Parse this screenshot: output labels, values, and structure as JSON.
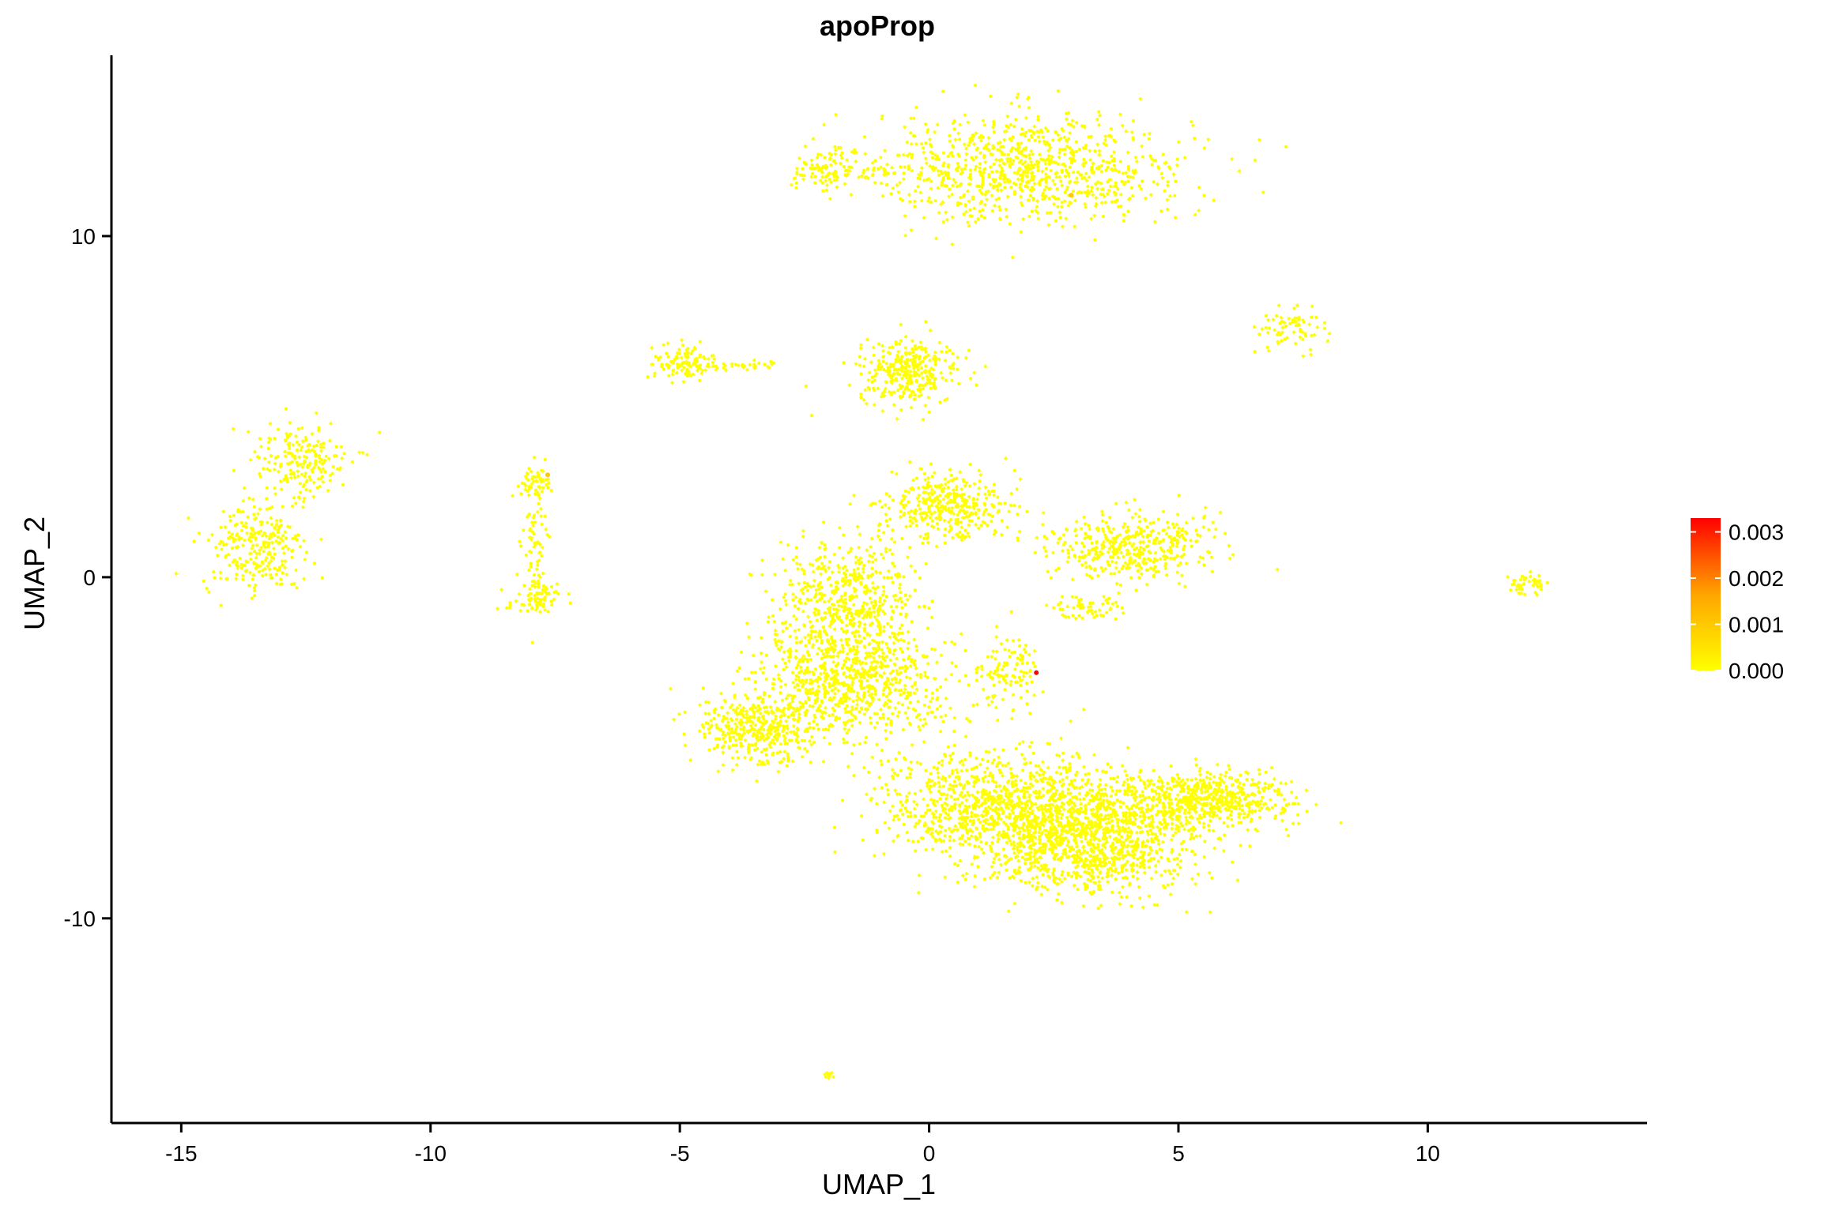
{
  "chart_data": {
    "type": "scatter",
    "title": "apoProp",
    "xlabel": "UMAP_1",
    "ylabel": "UMAP_2",
    "xlim": [
      -16.4,
      14.4
    ],
    "ylim": [
      -16.0,
      15.3
    ],
    "x_ticks": [
      -15,
      -10,
      -5,
      0,
      5,
      10
    ],
    "y_ticks": [
      -10,
      0,
      10
    ],
    "grid": false,
    "legend": {
      "position": "right",
      "type": "colorbar",
      "ticks": [
        "0.003",
        "0.002",
        "0.001",
        "0.000"
      ],
      "tick_values": [
        0.003,
        0.002,
        0.001,
        0.0
      ],
      "range": [
        0.0,
        0.0033
      ],
      "colors": {
        "low": "#ffff00",
        "mid": "#ffa500",
        "high": "#ff0000"
      }
    },
    "point_color": "#ffff00",
    "clusters": [
      {
        "name": "top-cluster-main",
        "cx": 2.0,
        "cy": 12.0,
        "sx": 1.6,
        "sy": 0.8,
        "n": 900
      },
      {
        "name": "top-cluster-left",
        "cx": -2.1,
        "cy": 11.9,
        "sx": 0.3,
        "sy": 0.3,
        "n": 90
      },
      {
        "name": "top-bridge",
        "cx": -0.6,
        "cy": 11.9,
        "sx": 0.8,
        "sy": 0.1,
        "n": 40
      },
      {
        "name": "right-small-cluster",
        "cx": 7.3,
        "cy": 7.3,
        "sx": 0.35,
        "sy": 0.3,
        "n": 70
      },
      {
        "name": "mid-left-cluster",
        "cx": -4.9,
        "cy": 6.3,
        "sx": 0.3,
        "sy": 0.25,
        "n": 120
      },
      {
        "name": "mid-left-tail",
        "cx": -3.7,
        "cy": 6.2,
        "sx": 0.4,
        "sy": 0.08,
        "n": 30
      },
      {
        "name": "center-upper-cluster",
        "cx": -0.4,
        "cy": 6.0,
        "sx": 0.5,
        "sy": 0.45,
        "n": 320
      },
      {
        "name": "far-left-cluster-upper",
        "cx": -12.6,
        "cy": 3.4,
        "sx": 0.5,
        "sy": 0.6,
        "n": 200
      },
      {
        "name": "far-left-cluster-lower",
        "cx": -13.5,
        "cy": 0.8,
        "sx": 0.5,
        "sy": 0.7,
        "n": 260
      },
      {
        "name": "left-narrow-cluster-top",
        "cx": -7.9,
        "cy": 2.8,
        "sx": 0.2,
        "sy": 0.25,
        "n": 50
      },
      {
        "name": "left-narrow-cluster-stem",
        "cx": -7.9,
        "cy": 1.0,
        "sx": 0.12,
        "sy": 0.9,
        "n": 70
      },
      {
        "name": "left-narrow-cluster-bottom",
        "cx": -7.9,
        "cy": -0.6,
        "sx": 0.3,
        "sy": 0.25,
        "n": 70
      },
      {
        "name": "central-top-cluster",
        "cx": 0.4,
        "cy": 2.1,
        "sx": 0.6,
        "sy": 0.5,
        "n": 380
      },
      {
        "name": "right-mid-cluster",
        "cx": 4.0,
        "cy": 0.9,
        "sx": 0.8,
        "sy": 0.5,
        "n": 420
      },
      {
        "name": "right-mid-lower",
        "cx": 3.1,
        "cy": -0.9,
        "sx": 0.35,
        "sy": 0.2,
        "n": 60
      },
      {
        "name": "far-right-cluster",
        "cx": 12.0,
        "cy": -0.2,
        "sx": 0.2,
        "sy": 0.15,
        "n": 45
      },
      {
        "name": "central-left-upper",
        "cx": -1.6,
        "cy": -0.6,
        "sx": 0.7,
        "sy": 0.8,
        "n": 520
      },
      {
        "name": "central-left-mid",
        "cx": -1.6,
        "cy": -3.0,
        "sx": 1.0,
        "sy": 0.8,
        "n": 800
      },
      {
        "name": "central-left-lower",
        "cx": -3.4,
        "cy": -4.5,
        "sx": 0.6,
        "sy": 0.5,
        "n": 380
      },
      {
        "name": "central-thin-cluster",
        "cx": 1.6,
        "cy": -2.8,
        "sx": 0.3,
        "sy": 0.6,
        "n": 120
      },
      {
        "name": "bottom-big-left",
        "cx": 1.3,
        "cy": -6.7,
        "sx": 1.2,
        "sy": 0.8,
        "n": 900
      },
      {
        "name": "bottom-big-center",
        "cx": 3.2,
        "cy": -7.6,
        "sx": 1.1,
        "sy": 0.8,
        "n": 1200
      },
      {
        "name": "bottom-big-right",
        "cx": 5.6,
        "cy": -6.5,
        "sx": 0.8,
        "sy": 0.4,
        "n": 550
      },
      {
        "name": "bottom-tiny",
        "cx": -2.0,
        "cy": -14.6,
        "sx": 0.1,
        "sy": 0.04,
        "n": 10
      }
    ],
    "highlighted_points": [
      {
        "x": 2.15,
        "y": -2.8,
        "value": 0.0033
      },
      {
        "x": 2.85,
        "y": 11.2,
        "value": 0.001
      },
      {
        "x": -7.65,
        "y": 3.0,
        "value": 0.001
      }
    ]
  }
}
